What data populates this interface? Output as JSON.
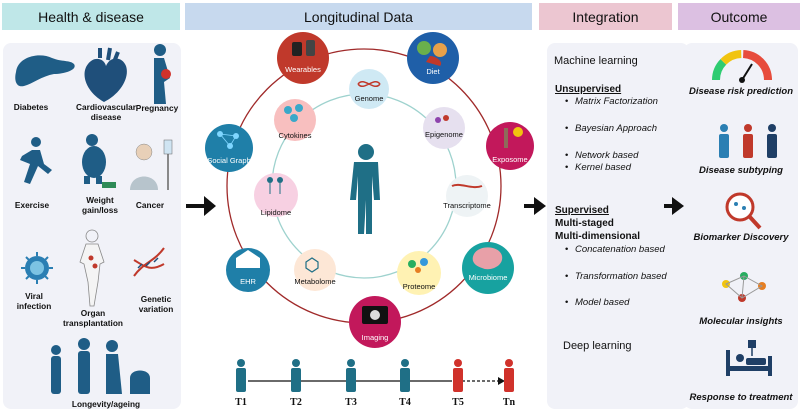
{
  "headers": {
    "health": "Health & disease",
    "longitudinal": "Longitudinal Data",
    "integration": "Integration",
    "outcome": "Outcome"
  },
  "health_conditions": [
    "Diabetes",
    "Cardiovascular disease",
    "Pregnancy",
    "Exercise",
    "Weight gain/loss",
    "Cancer",
    "Viral infection",
    "Organ transplantation",
    "Genetic variation",
    "Longevity/ageing"
  ],
  "data_types": {
    "outer": [
      "Wearables",
      "Diet",
      "Exposome",
      "Microbiome",
      "Imaging",
      "EHR",
      "Social Graph"
    ],
    "inner": [
      "Genome",
      "Epigenome",
      "Transcriptome",
      "Proteome",
      "Metabolome",
      "Lipidome",
      "Cytokines"
    ]
  },
  "timeline": [
    "T1",
    "T2",
    "T3",
    "T4",
    "T5",
    "Tn"
  ],
  "integration": {
    "title": "Machine learning",
    "unsupervised": "Unsupervised",
    "unsupervised_items": [
      "Matrix Factorization",
      "Bayesian Approach",
      "Network based",
      "Kernel based"
    ],
    "supervised": "Supervised",
    "supervised_sub1": "Multi-staged",
    "supervised_sub2": "Multi-dimensional",
    "supervised_items": [
      "Concatenation based",
      "Transformation based",
      "Model based"
    ],
    "deep": "Deep learning"
  },
  "outcomes": [
    "Disease risk prediction",
    "Disease subtyping",
    "Biomarker Discovery",
    "Molecular insights",
    "Response to treatment"
  ],
  "colors": {
    "teal": "#1f6f86",
    "red": "#d0322b",
    "ring": "#a02a2a"
  }
}
